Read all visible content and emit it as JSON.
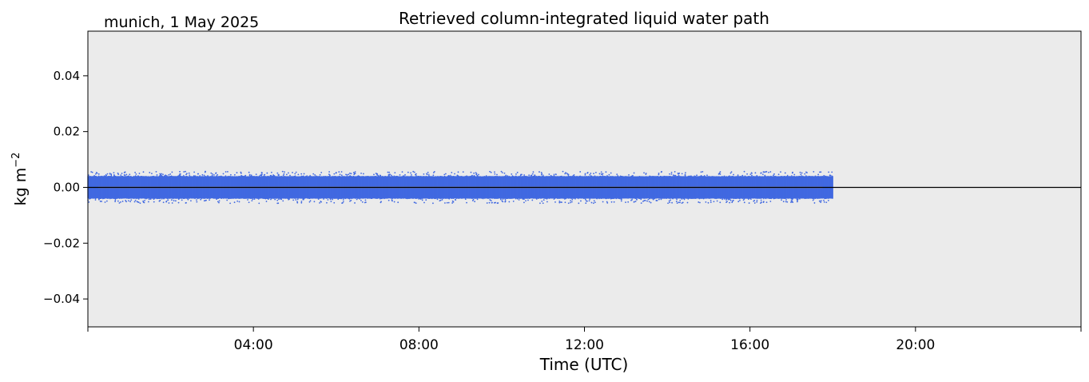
{
  "chart_data": {
    "type": "scatter",
    "title": "Retrieved column-integrated liquid water path",
    "subtitle": "munich, 1 May 2025",
    "xlabel": "Time (UTC)",
    "ylabel_base": "kg m",
    "ylabel_exp": "−2",
    "xlim_hours": [
      0,
      24
    ],
    "ylim": [
      -0.05,
      0.056
    ],
    "xticks": [
      {
        "hour": 0,
        "label": ""
      },
      {
        "hour": 4,
        "label": "04:00"
      },
      {
        "hour": 8,
        "label": "08:00"
      },
      {
        "hour": 12,
        "label": "12:00"
      },
      {
        "hour": 16,
        "label": "16:00"
      },
      {
        "hour": 20,
        "label": "20:00"
      },
      {
        "hour": 24,
        "label": ""
      }
    ],
    "yticks": [
      {
        "value": -0.04,
        "label": "−0.04"
      },
      {
        "value": -0.02,
        "label": "−0.02"
      },
      {
        "value": 0.0,
        "label": "0.00"
      },
      {
        "value": 0.02,
        "label": "0.02"
      },
      {
        "value": 0.04,
        "label": "0.04"
      }
    ],
    "zero_line": 0.0,
    "grid": false,
    "background_color": "#ebebeb",
    "series": [
      {
        "kind": "scatter",
        "color": "#4169e1",
        "x_range_hours": [
          0.0,
          18.0
        ],
        "typical_range": [
          -0.004,
          0.004
        ],
        "extreme_range": [
          -0.007,
          0.006
        ],
        "mean_value": 0.0
      },
      {
        "kind": "line",
        "color": "#ffa500",
        "x_range_hours": [
          0.25,
          17.75
        ],
        "values": [
          0.0,
          0.0,
          0.0,
          0.0,
          0.0
        ]
      }
    ]
  }
}
